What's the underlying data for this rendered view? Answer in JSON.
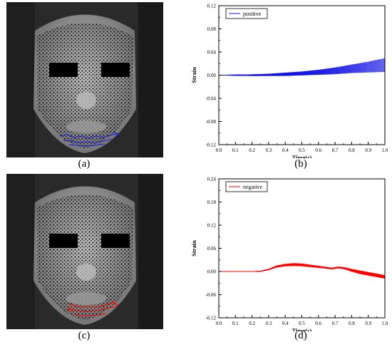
{
  "panels": {
    "a": {
      "caption": "(a)"
    },
    "b": {
      "caption": "(b)"
    },
    "c": {
      "caption": "(c)"
    },
    "d": {
      "caption": "(d)"
    }
  },
  "colors": {
    "positive": "#1414e6",
    "negative": "#ff0000",
    "photo_bg": "#2a2a2a",
    "skin": "#a8a8a8"
  },
  "chart_data": [
    {
      "type": "line",
      "xlabel": "Time(s)",
      "ylabel": "Strain",
      "xlim": [
        0.0,
        1.0
      ],
      "ylim": [
        -0.12,
        0.12
      ],
      "xticks": [
        "0.0",
        "0.1",
        "0.2",
        "0.3",
        "0.4",
        "0.5",
        "0.6",
        "0.7",
        "0.8",
        "0.9",
        "1.0"
      ],
      "yticks": [
        "-0.12",
        "-0.08",
        "-0.04",
        "0.00",
        "0.04",
        "0.08",
        "0.12"
      ],
      "legend": {
        "label": "positive",
        "placement": "top-left"
      },
      "x": [
        0.0,
        0.1,
        0.2,
        0.3,
        0.4,
        0.5,
        0.6,
        0.7,
        0.8,
        0.9,
        1.0
      ],
      "series": [
        {
          "name": "positive",
          "upper": [
            0,
            0.0005,
            0.001,
            0.002,
            0.004,
            0.006,
            0.009,
            0.013,
            0.018,
            0.023,
            0.029
          ],
          "lower": [
            0,
            -0.0005,
            -0.001,
            -0.001,
            -0.001,
            0.0,
            0.001,
            0.002,
            0.004,
            0.005,
            0.006
          ]
        }
      ]
    },
    {
      "type": "line",
      "xlabel": "Time(s)",
      "ylabel": "Strain",
      "xlim": [
        0.0,
        1.0
      ],
      "ylim": [
        -0.12,
        0.24
      ],
      "xticks": [
        "0.0",
        "0.1",
        "0.2",
        "0.3",
        "0.4",
        "0.5",
        "0.6",
        "0.7",
        "0.8",
        "0.9",
        "1.0"
      ],
      "yticks": [
        "-0.12",
        "-0.06",
        "0.00",
        "0.06",
        "0.12",
        "0.18",
        "0.24"
      ],
      "legend": {
        "label": "negative",
        "placement": "top-left"
      },
      "x": [
        0.0,
        0.1,
        0.2,
        0.25,
        0.3,
        0.35,
        0.4,
        0.45,
        0.5,
        0.55,
        0.6,
        0.65,
        0.68,
        0.72,
        0.76,
        0.8,
        0.85,
        0.9,
        0.95,
        1.0
      ],
      "series": [
        {
          "name": "negative",
          "upper": [
            0,
            0,
            0,
            0.001,
            0.006,
            0.015,
            0.019,
            0.021,
            0.02,
            0.017,
            0.014,
            0.011,
            0.009,
            0.012,
            0.01,
            0.006,
            0.002,
            -0.002,
            -0.006,
            -0.01
          ],
          "lower": [
            0,
            0,
            0,
            0.0,
            0.004,
            0.011,
            0.014,
            0.015,
            0.014,
            0.012,
            0.01,
            0.008,
            0.006,
            0.009,
            0.006,
            0.0,
            -0.006,
            -0.01,
            -0.014,
            -0.018
          ]
        }
      ]
    }
  ]
}
